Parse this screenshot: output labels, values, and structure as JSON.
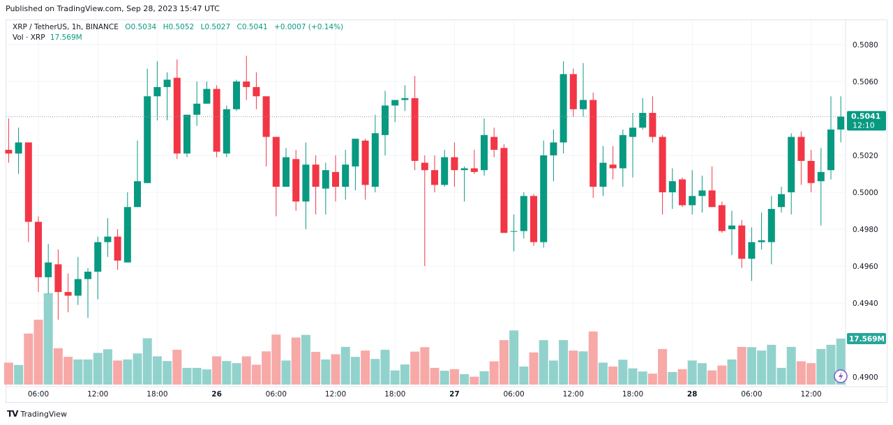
{
  "header": {
    "published": "Published on TradingView.com, Sep 28, 2023 15:47 UTC"
  },
  "legend": {
    "symbol": "XRP / TetherUS, 1h, BINANCE",
    "open": "O0.5034",
    "high": "H0.5052",
    "low": "L0.5027",
    "close": "C0.5041",
    "change": "+0.0007 (+0.14%)",
    "vol_label": "Vol · XRP",
    "vol_value": "17.569M"
  },
  "price_tag": {
    "price": "0.5041",
    "countdown": "12:10"
  },
  "volume_tag": "17.569M",
  "footer": {
    "brand": "TradingView",
    "logo_icon": "tradingview-logo-icon"
  },
  "colors": {
    "up": "#089981",
    "down": "#f23645",
    "vol_up": "#92d2cc",
    "vol_down": "#f7a9a7",
    "flash_icon": "#7e57c2"
  },
  "chart_data": {
    "type": "candlestick",
    "interval": "1h",
    "first_bar": "Sep 25 03:00",
    "last_bar": "Sep 28 15:00",
    "price_ticks": [
      "0.5080",
      "0.5060",
      "0.5020",
      "0.5000",
      "0.4980",
      "0.4960",
      "0.4940",
      "0.4900"
    ],
    "time_ticks": [
      "06:00",
      "12:00",
      "18:00",
      "26",
      "06:00",
      "12:00",
      "18:00",
      "27",
      "06:00",
      "12:00",
      "18:00",
      "28",
      "06:00",
      "12:00"
    ],
    "grid": true,
    "current_price": 0.5041,
    "ohlc": [
      [
        0.5023,
        0.504,
        0.5016,
        0.5021
      ],
      [
        0.5021,
        0.5035,
        0.501,
        0.5027
      ],
      [
        0.5027,
        0.5027,
        0.4973,
        0.4984
      ],
      [
        0.4984,
        0.4987,
        0.4946,
        0.4954
      ],
      [
        0.4954,
        0.4972,
        0.4945,
        0.4962
      ],
      [
        0.4961,
        0.4969,
        0.4931,
        0.4946
      ],
      [
        0.4946,
        0.4956,
        0.4935,
        0.4944
      ],
      [
        0.4944,
        0.4965,
        0.4939,
        0.4953
      ],
      [
        0.4953,
        0.4959,
        0.4932,
        0.4957
      ],
      [
        0.4957,
        0.4976,
        0.4942,
        0.4973
      ],
      [
        0.4973,
        0.4986,
        0.4965,
        0.4976
      ],
      [
        0.4976,
        0.498,
        0.4958,
        0.4963
      ],
      [
        0.4962,
        0.5,
        0.4962,
        0.4992
      ],
      [
        0.4992,
        0.5028,
        0.4992,
        0.5006
      ],
      [
        0.5005,
        0.5067,
        0.5005,
        0.5052
      ],
      [
        0.5052,
        0.5071,
        0.5039,
        0.5057
      ],
      [
        0.5057,
        0.5065,
        0.5039,
        0.5061
      ],
      [
        0.5062,
        0.5072,
        0.5018,
        0.5021
      ],
      [
        0.5021,
        0.5042,
        0.5019,
        0.5042
      ],
      [
        0.5042,
        0.506,
        0.5036,
        0.5048
      ],
      [
        0.5048,
        0.506,
        0.5048,
        0.5056
      ],
      [
        0.5056,
        0.5058,
        0.5019,
        0.5022
      ],
      [
        0.5021,
        0.5047,
        0.5019,
        0.5045
      ],
      [
        0.5045,
        0.5061,
        0.5044,
        0.506
      ],
      [
        0.506,
        0.5074,
        0.505,
        0.5057
      ],
      [
        0.5057,
        0.5065,
        0.5045,
        0.5052
      ],
      [
        0.5052,
        0.5052,
        0.5014,
        0.503
      ],
      [
        0.503,
        0.503,
        0.4987,
        0.5003
      ],
      [
        0.5003,
        0.5024,
        0.5003,
        0.5019
      ],
      [
        0.5018,
        0.5023,
        0.499,
        0.4995
      ],
      [
        0.4995,
        0.5027,
        0.498,
        0.5015
      ],
      [
        0.5015,
        0.502,
        0.4988,
        0.5003
      ],
      [
        0.5002,
        0.5016,
        0.4988,
        0.5012
      ],
      [
        0.5011,
        0.502,
        0.4995,
        0.5003
      ],
      [
        0.5003,
        0.5023,
        0.4996,
        0.5015
      ],
      [
        0.5014,
        0.5029,
        0.5001,
        0.5029
      ],
      [
        0.5028,
        0.5029,
        0.4996,
        0.5004
      ],
      [
        0.5003,
        0.5042,
        0.5,
        0.5032
      ],
      [
        0.5031,
        0.5055,
        0.502,
        0.5047
      ],
      [
        0.5047,
        0.505,
        0.5038,
        0.505
      ],
      [
        0.505,
        0.5058,
        0.5044,
        0.5051
      ],
      [
        0.5051,
        0.5063,
        0.5012,
        0.5017
      ],
      [
        0.5016,
        0.502,
        0.496,
        0.5012
      ],
      [
        0.5012,
        0.502,
        0.5,
        0.5004
      ],
      [
        0.5004,
        0.5023,
        0.5003,
        0.5019
      ],
      [
        0.5019,
        0.5027,
        0.5003,
        0.5012
      ],
      [
        0.5012,
        0.5014,
        0.4995,
        0.5013
      ],
      [
        0.5013,
        0.5023,
        0.501,
        0.5011
      ],
      [
        0.5012,
        0.504,
        0.5009,
        0.5031
      ],
      [
        0.503,
        0.5035,
        0.5019,
        0.5023
      ],
      [
        0.5024,
        0.5026,
        0.4978,
        0.4978
      ],
      [
        0.4979,
        0.4988,
        0.4968,
        0.4979
      ],
      [
        0.4979,
        0.5,
        0.4975,
        0.4998
      ],
      [
        0.4998,
        0.4999,
        0.4971,
        0.4973
      ],
      [
        0.4973,
        0.5028,
        0.497,
        0.502
      ],
      [
        0.502,
        0.5034,
        0.5006,
        0.5027
      ],
      [
        0.5027,
        0.5071,
        0.5021,
        0.5064
      ],
      [
        0.5064,
        0.5067,
        0.5041,
        0.5045
      ],
      [
        0.5045,
        0.507,
        0.5041,
        0.505
      ],
      [
        0.505,
        0.5054,
        0.4997,
        0.5003
      ],
      [
        0.5003,
        0.5025,
        0.4998,
        0.5016
      ],
      [
        0.5015,
        0.5025,
        0.5007,
        0.5013
      ],
      [
        0.5013,
        0.5034,
        0.5003,
        0.5031
      ],
      [
        0.503,
        0.5043,
        0.5008,
        0.5035
      ],
      [
        0.5035,
        0.5051,
        0.5034,
        0.5043
      ],
      [
        0.5043,
        0.5052,
        0.5027,
        0.503
      ],
      [
        0.503,
        0.5031,
        0.4988,
        0.5
      ],
      [
        0.5,
        0.5013,
        0.4991,
        0.5006
      ],
      [
        0.5007,
        0.5008,
        0.4992,
        0.4993
      ],
      [
        0.4993,
        0.5012,
        0.4988,
        0.4998
      ],
      [
        0.4998,
        0.5009,
        0.4989,
        0.5001
      ],
      [
        0.5001,
        0.5014,
        0.4992,
        0.4992
      ],
      [
        0.4993,
        0.4995,
        0.4978,
        0.4979
      ],
      [
        0.498,
        0.499,
        0.4966,
        0.4982
      ],
      [
        0.4982,
        0.4985,
        0.4959,
        0.4964
      ],
      [
        0.4964,
        0.4981,
        0.4952,
        0.4973
      ],
      [
        0.4973,
        0.4989,
        0.4969,
        0.4974
      ],
      [
        0.4973,
        0.4998,
        0.4961,
        0.4991
      ],
      [
        0.4992,
        0.5003,
        0.4989,
        0.4999
      ],
      [
        0.5,
        0.5032,
        0.4988,
        0.503
      ],
      [
        0.503,
        0.5033,
        0.5004,
        0.5017
      ],
      [
        0.5017,
        0.5023,
        0.5,
        0.5005
      ],
      [
        0.5006,
        0.5024,
        0.4982,
        0.5011
      ],
      [
        0.5012,
        0.5052,
        0.5007,
        0.5034
      ],
      [
        0.5034,
        0.5052,
        0.5027,
        0.5041
      ]
    ],
    "volume_millions": [
      8.4,
      7.5,
      19.5,
      24.8,
      34.9,
      13.9,
      10.6,
      9.6,
      9.6,
      12.1,
      13.5,
      9.2,
      9.6,
      11.9,
      17.7,
      10.8,
      9.0,
      13.3,
      6.4,
      6.4,
      5.8,
      10.8,
      9.0,
      8.2,
      10.8,
      7.6,
      12.7,
      19.1,
      9.2,
      18.0,
      19.0,
      12.5,
      9.6,
      11.6,
      14.4,
      10.6,
      13.0,
      9.8,
      13.3,
      5.4,
      7.7,
      12.6,
      14.3,
      6.4,
      5.3,
      5.9,
      4.0,
      3.0,
      5.1,
      8.9,
      17.0,
      20.7,
      6.9,
      12.3,
      17.0,
      9.2,
      17.0,
      13.0,
      12.7,
      20.3,
      8.4,
      6.9,
      9.5,
      6.2,
      5.0,
      4.2,
      13.6,
      4.8,
      5.9,
      9.2,
      8.2,
      5.4,
      7.3,
      9.6,
      14.4,
      14.3,
      13.0,
      15.2,
      6.4,
      14.4,
      8.9,
      8.2,
      13.6,
      15.2,
      17.569
    ]
  }
}
